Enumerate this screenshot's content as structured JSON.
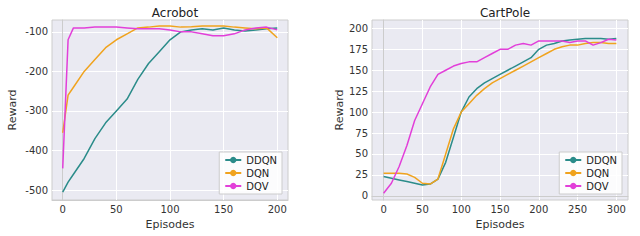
{
  "chart_data": [
    {
      "type": "line",
      "title": "Acrobot",
      "x_label": "Episodes",
      "y_label": "Reward",
      "x": [
        0,
        5,
        10,
        20,
        30,
        40,
        50,
        60,
        70,
        80,
        90,
        100,
        110,
        120,
        130,
        140,
        150,
        160,
        170,
        180,
        190,
        200
      ],
      "series": [
        {
          "name": "DDQN",
          "color": "#2b8c8a",
          "values": [
            -505,
            -480,
            -460,
            -420,
            -370,
            -330,
            -300,
            -270,
            -220,
            -180,
            -150,
            -120,
            -100,
            -95,
            -92,
            -95,
            -90,
            -95,
            -98,
            -95,
            -92,
            -90
          ]
        },
        {
          "name": "DQN",
          "color": "#f0a31e",
          "values": [
            -355,
            -260,
            -240,
            -200,
            -170,
            -140,
            -120,
            -105,
            -90,
            -88,
            -85,
            -85,
            -88,
            -87,
            -85,
            -85,
            -85,
            -88,
            -90,
            -92,
            -90,
            -115
          ]
        },
        {
          "name": "DQV",
          "color": "#e23fd9",
          "values": [
            -445,
            -120,
            -90,
            -90,
            -88,
            -88,
            -88,
            -90,
            -92,
            -92,
            -92,
            -95,
            -100,
            -100,
            -105,
            -110,
            -110,
            -105,
            -95,
            -90,
            -88,
            -95
          ]
        }
      ],
      "xlim": [
        -10,
        210
      ],
      "xticks": [
        0,
        50,
        100,
        150,
        200
      ],
      "ylim": [
        -525,
        -70
      ],
      "yticks": [
        -500,
        -400,
        -300,
        -200,
        -100
      ],
      "grid": true,
      "legend": "lower right"
    },
    {
      "type": "line",
      "title": "CartPole",
      "x_label": "Episodes",
      "y_label": "Reward",
      "x": [
        0,
        10,
        20,
        30,
        40,
        50,
        60,
        70,
        80,
        90,
        100,
        110,
        120,
        130,
        140,
        150,
        160,
        170,
        180,
        190,
        200,
        210,
        220,
        230,
        240,
        250,
        260,
        270,
        280,
        290,
        300
      ],
      "series": [
        {
          "name": "DDQN",
          "color": "#2b8c8a",
          "values": [
            23,
            21,
            19,
            17,
            15,
            13,
            14,
            20,
            40,
            70,
            100,
            118,
            128,
            135,
            140,
            145,
            150,
            155,
            160,
            165,
            175,
            180,
            182,
            185,
            186,
            187,
            188,
            188,
            188,
            187,
            188
          ]
        },
        {
          "name": "DQN",
          "color": "#f0a31e",
          "values": [
            27,
            27,
            27,
            26,
            22,
            15,
            14,
            20,
            50,
            80,
            100,
            110,
            120,
            128,
            135,
            140,
            145,
            150,
            155,
            160,
            165,
            170,
            175,
            178,
            180,
            180,
            182,
            183,
            183,
            182,
            182
          ]
        },
        {
          "name": "DQV",
          "color": "#e23fd9",
          "values": [
            3,
            15,
            35,
            60,
            90,
            110,
            130,
            145,
            150,
            155,
            158,
            160,
            160,
            165,
            170,
            175,
            175,
            180,
            182,
            180,
            185,
            185,
            185,
            185,
            183,
            185,
            185,
            180,
            183,
            187,
            186
          ]
        }
      ],
      "xlim": [
        -15,
        315
      ],
      "xticks": [
        0,
        50,
        100,
        150,
        200,
        250,
        300
      ],
      "ylim": [
        -5,
        210
      ],
      "yticks": [
        0,
        25,
        50,
        75,
        100,
        125,
        150,
        175,
        200
      ],
      "grid": true,
      "legend": "lower right"
    }
  ]
}
